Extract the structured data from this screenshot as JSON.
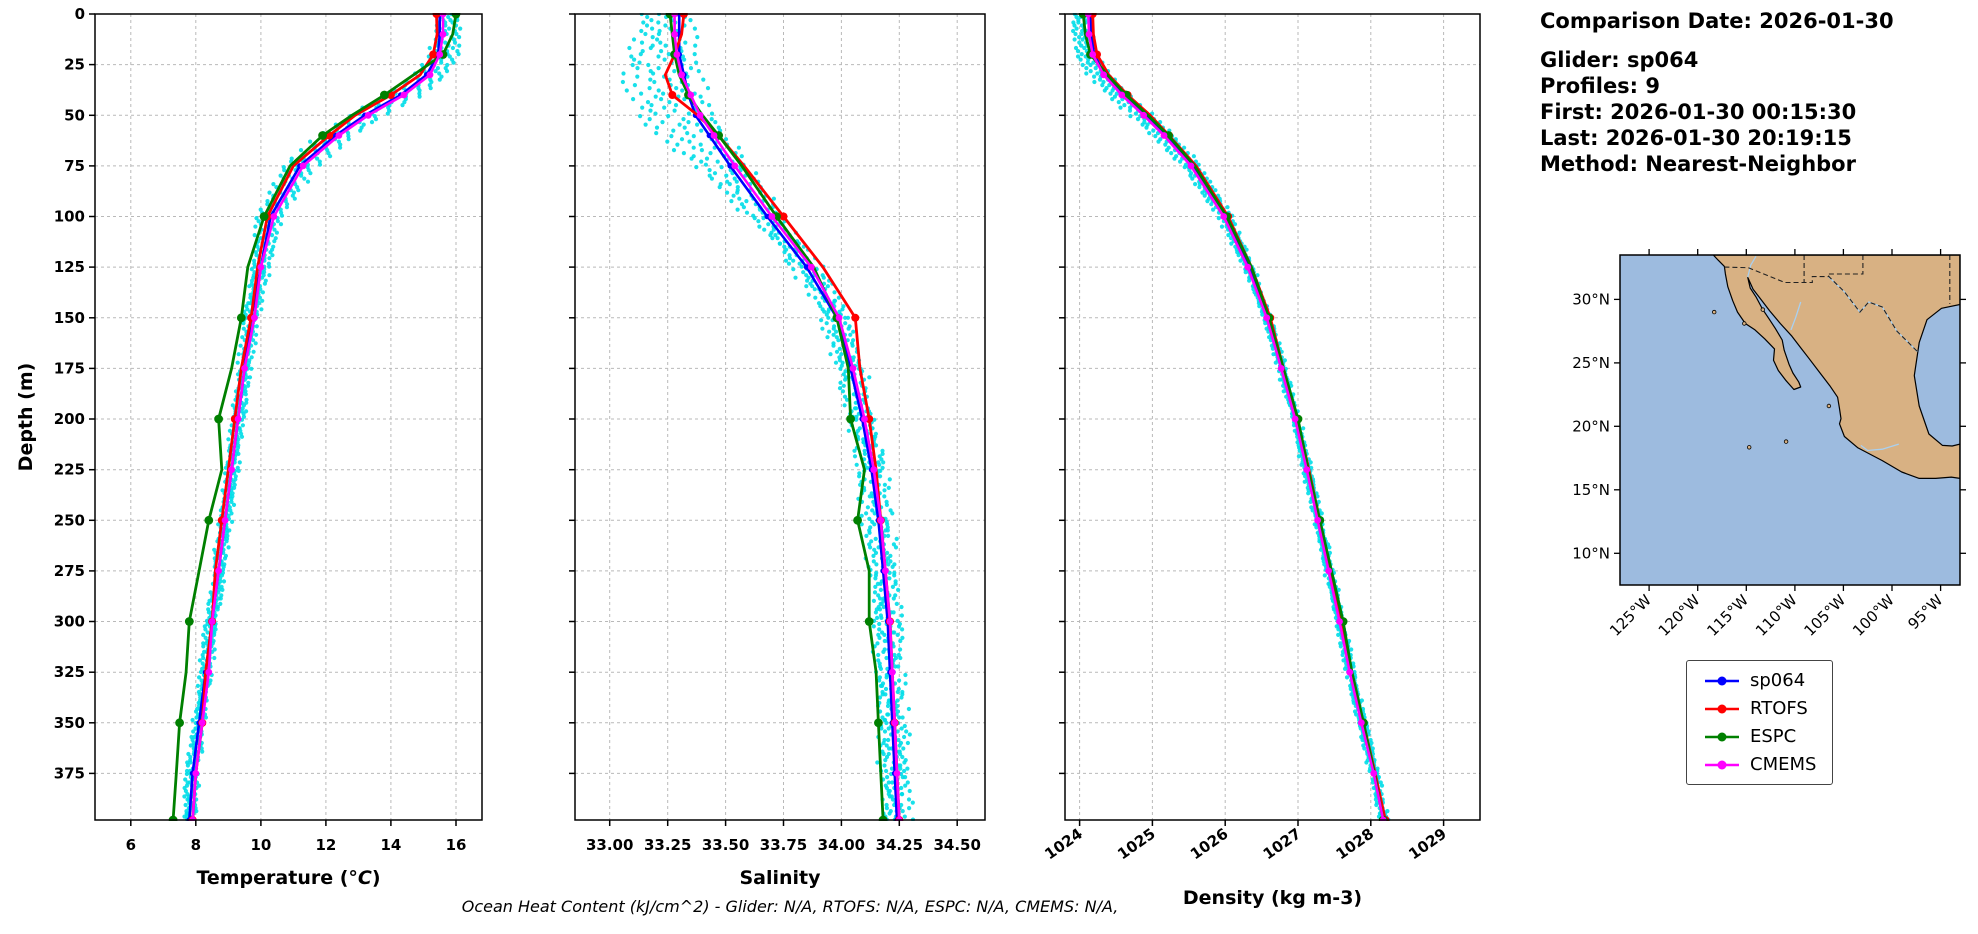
{
  "info": {
    "comparison_date": "Comparison Date: 2026-01-30",
    "glider": "Glider: sp064",
    "profiles": "Profiles: 9",
    "first": "First: 2026-01-30 00:15:30",
    "last": "Last: 2026-01-30 20:19:15",
    "method": "Method: Nearest-Neighbor"
  },
  "ohc_note": "Ocean Heat Content (kJ/cm^2) - Glider: N/A,  RTOFS: N/A,  ESPC: N/A,  CMEMS: N/A,",
  "legend": {
    "entries": [
      {
        "label": "sp064",
        "color": "#0000ff"
      },
      {
        "label": "RTOFS",
        "color": "#ff0000"
      },
      {
        "label": "ESPC",
        "color": "#008000"
      },
      {
        "label": "CMEMS",
        "color": "#ff00ff"
      }
    ]
  },
  "chart_data": {
    "type": "line",
    "ylabel": "Depth (m)",
    "ylim": [
      0,
      398
    ],
    "yticks": [
      0,
      25,
      50,
      75,
      100,
      125,
      150,
      175,
      200,
      225,
      250,
      275,
      300,
      325,
      350,
      375
    ],
    "grid": true,
    "depths": [
      0,
      10,
      20,
      30,
      40,
      50,
      60,
      75,
      100,
      125,
      150,
      175,
      200,
      225,
      250,
      275,
      300,
      325,
      350,
      375,
      398
    ],
    "charts": [
      {
        "variable": "temperature",
        "xlabel_parts": [
          {
            "text": "Temperature ("
          },
          {
            "text": "°C",
            "italic": true
          },
          {
            "text": ")"
          }
        ],
        "xlim": [
          4.9,
          16.8
        ],
        "xticks": [
          6,
          8,
          10,
          12,
          14,
          16
        ],
        "xtick_labels": [
          "6",
          "8",
          "10",
          "12",
          "14",
          "16"
        ],
        "xtick_rotation": 0,
        "show_ytick_labels": true,
        "show_ylabel": true
      },
      {
        "variable": "salinity",
        "xlabel_parts": [
          {
            "text": "Salinity"
          }
        ],
        "xlim": [
          32.85,
          34.62
        ],
        "xticks": [
          33.0,
          33.25,
          33.5,
          33.75,
          34.0,
          34.25,
          34.5
        ],
        "xtick_labels": [
          "33.00",
          "33.25",
          "33.50",
          "33.75",
          "34.00",
          "34.25",
          "34.50"
        ],
        "xtick_rotation": 0,
        "show_ytick_labels": false,
        "show_ylabel": false
      },
      {
        "variable": "density",
        "xlabel_parts": [
          {
            "text": "Density (kg m-3)"
          }
        ],
        "xlim": [
          1023.8,
          1029.5
        ],
        "xticks": [
          1024,
          1025,
          1026,
          1027,
          1028,
          1029
        ],
        "xtick_labels": [
          "1024",
          "1025",
          "1026",
          "1027",
          "1028",
          "1029"
        ],
        "xtick_rotation": -35,
        "show_ytick_labels": false,
        "show_ylabel": false
      }
    ],
    "series": [
      {
        "name": "sp064",
        "color": "#0000ff",
        "line_width": 2.6,
        "marker_size": 2.8,
        "marker_every": 1,
        "temperature": [
          15.5,
          15.5,
          15.45,
          15.1,
          14.3,
          13.2,
          12.3,
          11.2,
          10.3,
          10.0,
          9.7,
          9.5,
          9.3,
          9.1,
          8.9,
          8.7,
          8.5,
          8.3,
          8.1,
          7.9,
          7.8
        ],
        "salinity": [
          33.3,
          33.3,
          33.3,
          33.32,
          33.34,
          33.37,
          33.43,
          33.52,
          33.68,
          33.85,
          33.98,
          34.04,
          34.09,
          34.13,
          34.16,
          34.18,
          34.2,
          34.21,
          34.22,
          34.23,
          34.24
        ],
        "density": [
          1024.15,
          1024.16,
          1024.2,
          1024.35,
          1024.6,
          1024.9,
          1025.18,
          1025.55,
          1026.0,
          1026.32,
          1026.58,
          1026.78,
          1026.97,
          1027.13,
          1027.28,
          1027.43,
          1027.58,
          1027.72,
          1027.88,
          1028.05,
          1028.18
        ]
      },
      {
        "name": "RTOFS",
        "color": "#ff0000",
        "line_width": 2.8,
        "marker_size": 4.0,
        "marker_every": 2,
        "temperature": [
          15.4,
          15.42,
          15.3,
          14.9,
          14.0,
          12.9,
          12.1,
          11.0,
          10.2,
          9.9,
          9.7,
          9.4,
          9.2,
          9.0,
          8.8,
          8.6,
          8.5,
          8.3,
          8.2,
          8.0,
          7.9
        ],
        "salinity": [
          33.32,
          33.31,
          33.28,
          33.24,
          33.27,
          33.38,
          33.47,
          33.58,
          33.75,
          33.92,
          34.06,
          34.08,
          34.12,
          34.15,
          34.17,
          34.19,
          34.21,
          34.22,
          34.23,
          34.24,
          34.25
        ],
        "density": [
          1024.18,
          1024.19,
          1024.24,
          1024.4,
          1024.66,
          1024.97,
          1025.23,
          1025.6,
          1026.04,
          1026.36,
          1026.62,
          1026.8,
          1026.99,
          1027.15,
          1027.3,
          1027.45,
          1027.6,
          1027.74,
          1027.9,
          1028.06,
          1028.2
        ]
      },
      {
        "name": "ESPC",
        "color": "#008000",
        "line_width": 2.8,
        "marker_size": 4.4,
        "marker_every": 2,
        "temperature": [
          16.0,
          15.9,
          15.6,
          14.7,
          13.8,
          12.8,
          11.9,
          10.9,
          10.1,
          9.6,
          9.4,
          9.1,
          8.7,
          8.8,
          8.4,
          8.1,
          7.8,
          7.7,
          7.5,
          7.4,
          7.3
        ],
        "salinity": [
          33.26,
          33.27,
          33.28,
          33.3,
          33.34,
          33.4,
          33.47,
          33.57,
          33.72,
          33.88,
          33.98,
          34.03,
          34.04,
          34.1,
          34.07,
          34.12,
          34.12,
          34.15,
          34.16,
          34.17,
          34.18
        ],
        "density": [
          1024.05,
          1024.08,
          1024.15,
          1024.38,
          1024.64,
          1024.94,
          1025.22,
          1025.58,
          1026.02,
          1026.36,
          1026.6,
          1026.8,
          1027.0,
          1027.14,
          1027.3,
          1027.46,
          1027.62,
          1027.74,
          1027.9,
          1028.05,
          1028.17
        ]
      },
      {
        "name": "CMEMS",
        "color": "#ff00ff",
        "line_width": 2.6,
        "marker_size": 3.4,
        "marker_every": 1,
        "temperature": [
          15.6,
          15.6,
          15.5,
          15.2,
          14.4,
          13.3,
          12.4,
          11.3,
          10.4,
          10.0,
          9.8,
          9.5,
          9.3,
          9.1,
          8.9,
          8.7,
          8.5,
          8.4,
          8.2,
          8.0,
          7.9
        ],
        "salinity": [
          33.28,
          33.28,
          33.29,
          33.31,
          33.35,
          33.39,
          33.45,
          33.54,
          33.7,
          33.87,
          33.99,
          34.05,
          34.1,
          34.14,
          34.17,
          34.19,
          34.21,
          34.22,
          34.23,
          34.24,
          34.25
        ],
        "density": [
          1024.12,
          1024.13,
          1024.18,
          1024.33,
          1024.58,
          1024.88,
          1025.16,
          1025.53,
          1025.98,
          1026.31,
          1026.57,
          1026.77,
          1026.96,
          1027.12,
          1027.27,
          1027.42,
          1027.57,
          1027.71,
          1027.87,
          1028.04,
          1028.17
        ]
      }
    ],
    "glider_scatter": {
      "color": "#00dde8",
      "n_profiles": 9,
      "base_series": "sp064",
      "spreads": {
        "temperature": {
          "base": 0.15,
          "bulge": 0.38,
          "bulge_depth": 55,
          "bulge_width": 45,
          "bias": 0.25,
          "bias_depth": 0,
          "bias_width": 30
        },
        "salinity": {
          "base": 0.05,
          "bulge": 0.11,
          "bulge_depth": 40,
          "bulge_width": 32,
          "bias": -0.09,
          "bias_depth": 35,
          "bias_width": 30
        },
        "density": {
          "base": 0.05,
          "bulge": 0.1,
          "bulge_depth": 45,
          "bulge_width": 40,
          "bias": -0.12,
          "bias_depth": 0,
          "bias_width": 35
        }
      }
    }
  },
  "map": {
    "extent": {
      "lon": [
        -128,
        -93
      ],
      "lat": [
        7.5,
        33.5
      ]
    },
    "ocean_color": "#9dbbdf",
    "land_color": "#d8b183",
    "river_color": "#a9d0f0",
    "lat_ticks": [
      30,
      25,
      20,
      15,
      10
    ],
    "lat_tick_labels": [
      "30°N",
      "25°N",
      "20°N",
      "15°N",
      "10°N"
    ],
    "lon_ticks": [
      -125,
      -120,
      -115,
      -110,
      -105,
      -100,
      -95
    ],
    "lon_tick_labels": [
      "125°W",
      "120°W",
      "115°W",
      "110°W",
      "105°W",
      "100°W",
      "95°W"
    ],
    "land": [
      [
        -118.4,
        33.5
      ],
      [
        -93.0,
        33.5
      ],
      [
        -93.0,
        29.6
      ],
      [
        -94.9,
        29.3
      ],
      [
        -96.4,
        28.4
      ],
      [
        -97.2,
        26.6
      ],
      [
        -97.7,
        24.0
      ],
      [
        -97.2,
        21.6
      ],
      [
        -96.2,
        19.4
      ],
      [
        -94.8,
        18.5
      ],
      [
        -93.8,
        18.45
      ],
      [
        -93.0,
        18.6
      ],
      [
        -93.0,
        15.9
      ],
      [
        -93.9,
        16.0
      ],
      [
        -95.5,
        15.9
      ],
      [
        -97.2,
        15.9
      ],
      [
        -99.0,
        16.4
      ],
      [
        -101.0,
        17.3
      ],
      [
        -103.5,
        18.3
      ],
      [
        -104.9,
        19.2
      ],
      [
        -105.4,
        20.2
      ],
      [
        -105.25,
        20.6
      ],
      [
        -105.4,
        21.4
      ],
      [
        -105.6,
        22.3
      ],
      [
        -106.4,
        23.2
      ],
      [
        -107.5,
        24.3
      ],
      [
        -108.6,
        25.4
      ],
      [
        -109.4,
        26.2
      ],
      [
        -110.3,
        27.1
      ],
      [
        -111.5,
        28.1
      ],
      [
        -112.6,
        29.1
      ],
      [
        -113.5,
        30.0
      ],
      [
        -114.3,
        30.8
      ],
      [
        -114.85,
        31.75
      ],
      [
        -114.6,
        30.9
      ],
      [
        -114.0,
        30.2
      ],
      [
        -113.3,
        29.2
      ],
      [
        -112.6,
        28.4
      ],
      [
        -112.0,
        27.7
      ],
      [
        -111.3,
        26.8
      ],
      [
        -111.1,
        26.0
      ],
      [
        -110.6,
        24.9
      ],
      [
        -110.2,
        24.2
      ],
      [
        -109.6,
        23.5
      ],
      [
        -109.4,
        23.1
      ],
      [
        -110.1,
        22.9
      ],
      [
        -110.9,
        23.6
      ],
      [
        -111.7,
        24.4
      ],
      [
        -112.2,
        25.2
      ],
      [
        -112.1,
        26.1
      ],
      [
        -113.1,
        26.9
      ],
      [
        -114.1,
        27.6
      ],
      [
        -115.1,
        28.1
      ],
      [
        -115.9,
        29.0
      ],
      [
        -116.4,
        29.9
      ],
      [
        -116.9,
        31.0
      ],
      [
        -117.15,
        32.0
      ],
      [
        -117.25,
        32.6
      ],
      [
        -117.9,
        33.1
      ],
      [
        -118.4,
        33.5
      ]
    ],
    "borders": [
      [
        [
          -117.25,
          32.55
        ],
        [
          -114.8,
          32.5
        ],
        [
          -111.05,
          31.33
        ],
        [
          -108.2,
          31.33
        ],
        [
          -108.2,
          31.8
        ],
        [
          -106.5,
          31.8
        ],
        [
          -104.9,
          30.6
        ],
        [
          -103.3,
          29.0
        ],
        [
          -102.4,
          29.8
        ],
        [
          -101.0,
          29.4
        ],
        [
          -99.5,
          27.5
        ],
        [
          -98.3,
          26.6
        ],
        [
          -97.4,
          25.9
        ]
      ],
      [
        [
          -109.05,
          33.5
        ],
        [
          -109.05,
          31.33
        ]
      ],
      [
        [
          -103.0,
          33.5
        ],
        [
          -103.0,
          32.0
        ],
        [
          -106.62,
          32.0
        ],
        [
          -106.5,
          31.8
        ]
      ],
      [
        [
          -94.05,
          33.5
        ],
        [
          -94.05,
          29.65
        ]
      ]
    ],
    "rivers": [
      [
        [
          -106.55,
          31.8
        ],
        [
          -104.9,
          30.6
        ],
        [
          -103.3,
          29.0
        ],
        [
          -102.4,
          29.8
        ],
        [
          -101.0,
          29.4
        ],
        [
          -99.5,
          27.5
        ],
        [
          -98.3,
          26.6
        ],
        [
          -97.4,
          25.9
        ]
      ],
      [
        [
          -109.4,
          29.8
        ],
        [
          -109.9,
          28.6
        ],
        [
          -110.4,
          27.6
        ]
      ],
      [
        [
          -99.3,
          18.6
        ],
        [
          -101.0,
          18.2
        ],
        [
          -102.5,
          18.1
        ],
        [
          -103.2,
          18.5
        ]
      ],
      [
        [
          -114.85,
          31.75
        ],
        [
          -114.55,
          32.7
        ],
        [
          -114.0,
          33.4
        ]
      ]
    ],
    "islands": [
      [
        -118.3,
        29.0
      ],
      [
        -115.2,
        28.1
      ],
      [
        -113.3,
        29.2
      ],
      [
        -110.9,
        18.8
      ],
      [
        -114.7,
        18.35
      ],
      [
        -106.5,
        21.6
      ]
    ]
  }
}
